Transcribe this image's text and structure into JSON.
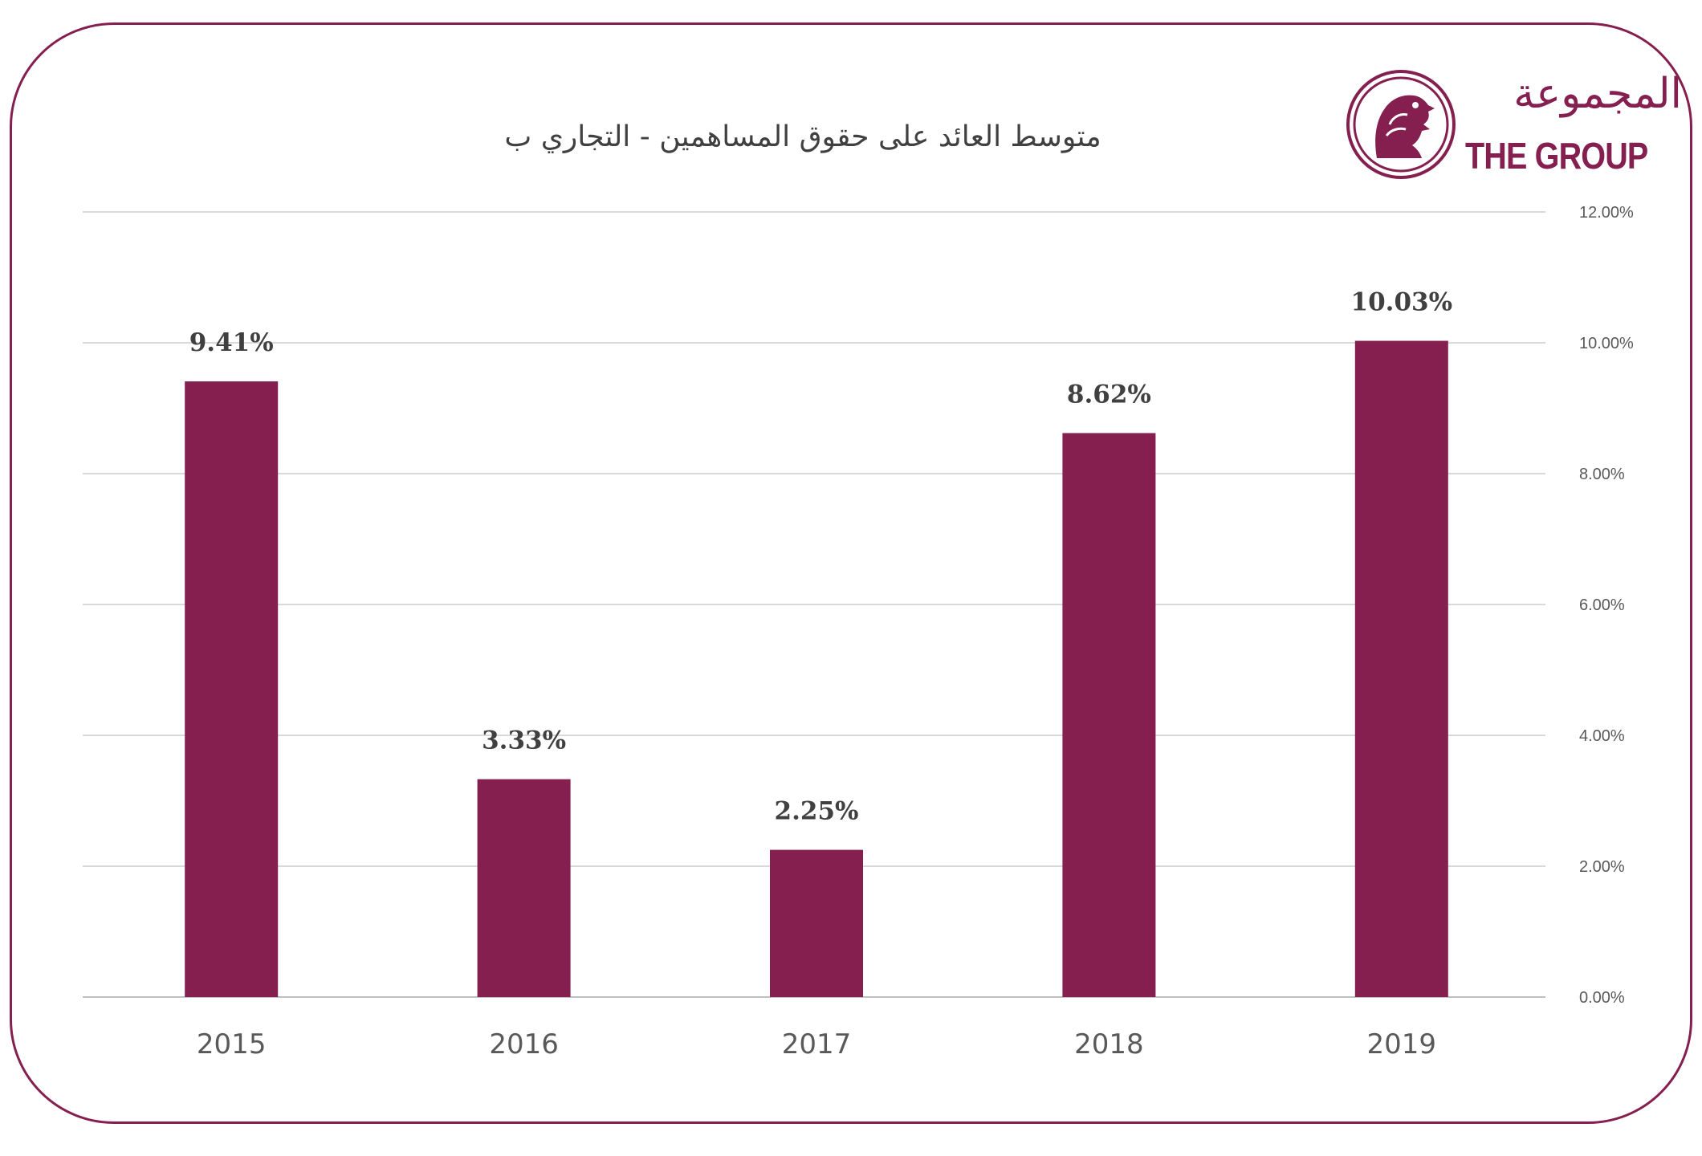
{
  "chart_data": {
    "type": "bar",
    "title": "متوسط العائد على حقوق المساهمين - التجاري ب",
    "categories": [
      "2015",
      "2016",
      "2017",
      "2018",
      "2019"
    ],
    "values": [
      9.41,
      3.33,
      2.25,
      8.62,
      10.03
    ],
    "data_labels": [
      "9.41%",
      "3.33%",
      "2.25%",
      "8.62%",
      "10.03%"
    ],
    "y_ticks": [
      "0.00%",
      "2.00%",
      "4.00%",
      "6.00%",
      "8.00%",
      "10.00%",
      "12.00%"
    ],
    "ylim": [
      0,
      12
    ],
    "y_axis_side": "right",
    "grid": true,
    "legend": "none",
    "bar_color": "#841f50"
  },
  "logo": {
    "arabic": "المجموعة",
    "english": "THE GROUP",
    "emblem": "falcon-icon",
    "color": "#841f50"
  }
}
